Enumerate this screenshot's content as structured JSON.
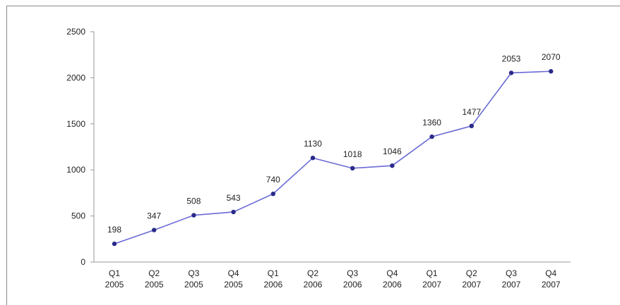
{
  "colors": {
    "line": "#6a6ad6",
    "marker": "#2a2a8a",
    "axis": "#9a9a9a",
    "text": "#222222"
  },
  "chart_data": {
    "type": "line",
    "title": "",
    "xlabel": "",
    "ylabel": "",
    "ylim": [
      0,
      2500
    ],
    "yticks": [
      0,
      500,
      1000,
      1500,
      2000,
      2500
    ],
    "grid": false,
    "legend": "none",
    "categories": [
      [
        "Q1",
        "2005"
      ],
      [
        "Q2",
        "2005"
      ],
      [
        "Q3",
        "2005"
      ],
      [
        "Q4",
        "2005"
      ],
      [
        "Q1",
        "2006"
      ],
      [
        "Q2",
        "2006"
      ],
      [
        "Q3",
        "2006"
      ],
      [
        "Q4",
        "2006"
      ],
      [
        "Q1",
        "2007"
      ],
      [
        "Q2",
        "2007"
      ],
      [
        "Q3",
        "2007"
      ],
      [
        "Q4",
        "2007"
      ]
    ],
    "series": [
      {
        "values": [
          198,
          347,
          508,
          543,
          740,
          1130,
          1018,
          1046,
          1360,
          1477,
          2053,
          2070
        ]
      }
    ]
  }
}
